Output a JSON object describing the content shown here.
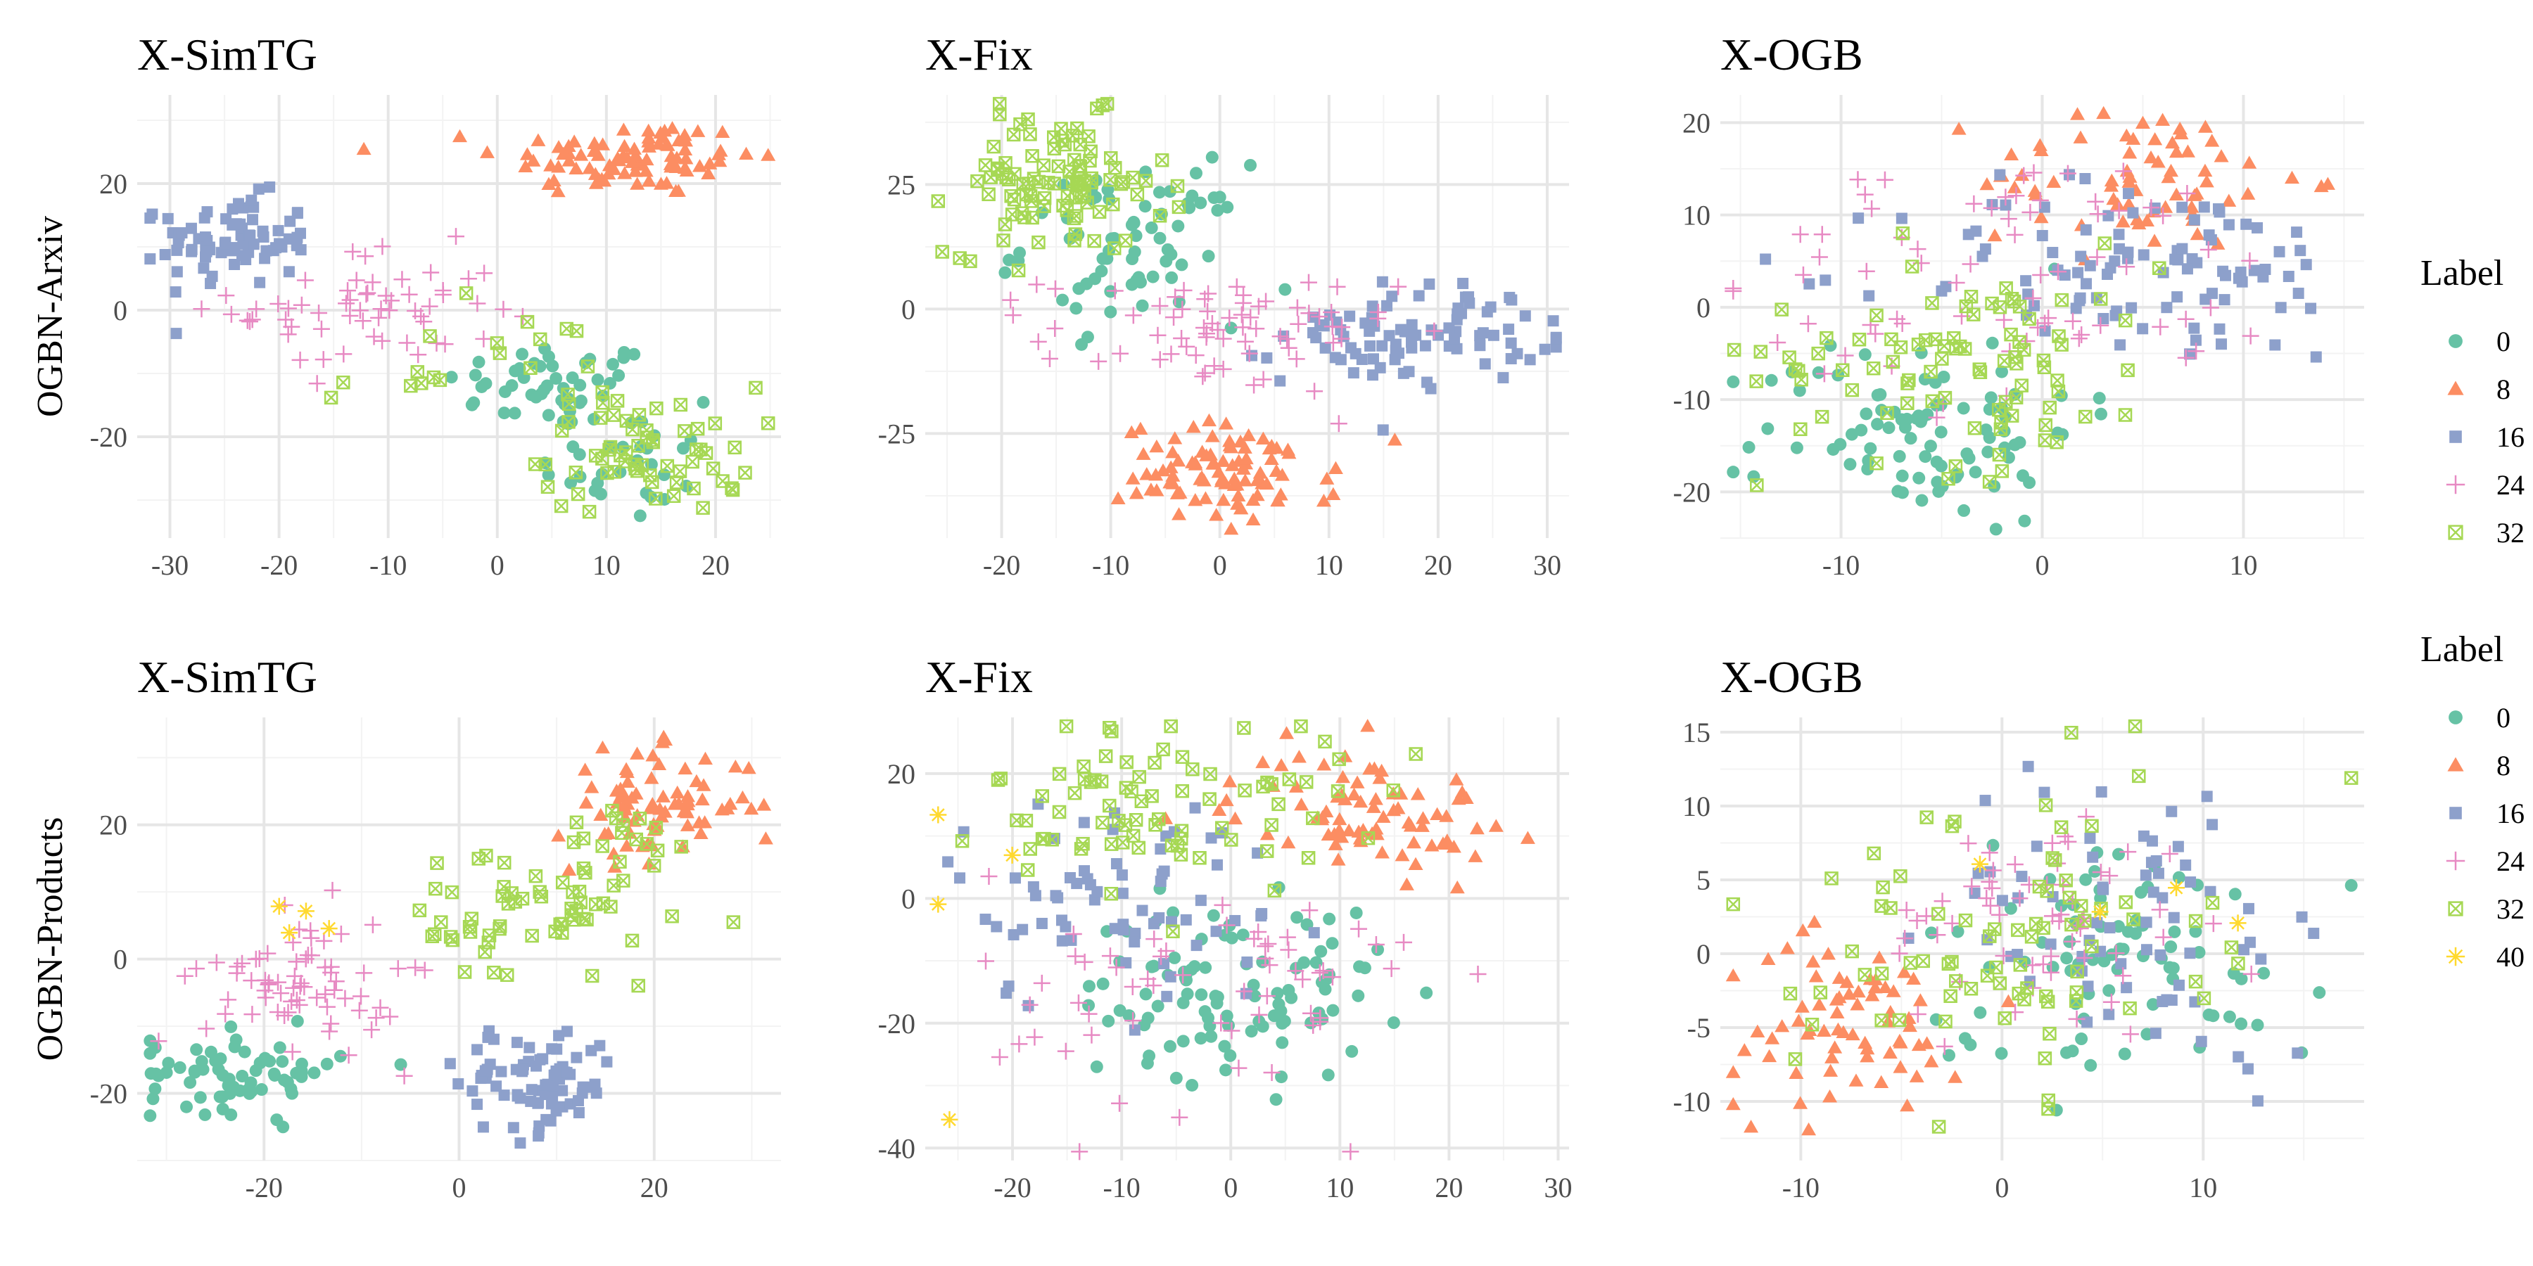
{
  "chart_data": [
    {
      "type": "scatter",
      "title": "X-SimTG",
      "row_label": "OGBN-Arxiv",
      "xlim": [
        -33,
        26
      ],
      "ylim": [
        -36,
        34
      ],
      "xticks": [
        -30,
        -20,
        -10,
        0,
        10,
        20
      ],
      "yticks": [
        -20,
        0,
        20
      ],
      "series": [
        {
          "name": "0",
          "clusters": [
            {
              "cx": 5,
              "cy": -12,
              "sx": 5,
              "sy": 3.5,
              "n": 50
            },
            {
              "cx": 12,
              "cy": -24,
              "sx": 4,
              "sy": 5,
              "n": 30
            }
          ]
        },
        {
          "name": "8",
          "clusters": [
            {
              "cx": 12,
              "cy": 24,
              "sx": 6,
              "sy": 3,
              "n": 90
            }
          ]
        },
        {
          "name": "16",
          "clusters": [
            {
              "cx": -24,
              "cy": 11,
              "sx": 3.5,
              "sy": 3.5,
              "n": 80
            }
          ]
        },
        {
          "name": "24",
          "clusters": [
            {
              "cx": -12,
              "cy": 0,
              "sx": 6,
              "sy": 5,
              "n": 60
            }
          ]
        },
        {
          "name": "32",
          "clusters": [
            {
              "cx": 14,
              "cy": -22,
              "sx": 5,
              "sy": 5,
              "n": 60
            },
            {
              "cx": -2,
              "cy": -10,
              "sx": 7,
              "sy": 5,
              "n": 20
            }
          ]
        }
      ]
    },
    {
      "type": "scatter",
      "title": "X-Fix",
      "xlim": [
        -27,
        32
      ],
      "ylim": [
        -46,
        43
      ],
      "xticks": [
        -20,
        -10,
        0,
        10,
        20,
        30
      ],
      "yticks": [
        -25,
        0,
        25
      ],
      "series": [
        {
          "name": "0",
          "clusters": [
            {
              "cx": -8,
              "cy": 13,
              "sx": 5,
              "sy": 8,
              "n": 70
            }
          ]
        },
        {
          "name": "8",
          "clusters": [
            {
              "cx": 1,
              "cy": -33,
              "sx": 5,
              "sy": 5,
              "n": 90
            }
          ]
        },
        {
          "name": "16",
          "clusters": [
            {
              "cx": 18,
              "cy": -5,
              "sx": 6,
              "sy": 5,
              "n": 90
            }
          ]
        },
        {
          "name": "24",
          "clusters": [
            {
              "cx": 0,
              "cy": -5,
              "sx": 8,
              "sy": 6,
              "n": 70
            }
          ]
        },
        {
          "name": "32",
          "clusters": [
            {
              "cx": -15,
              "cy": 25,
              "sx": 5,
              "sy": 7,
              "n": 100
            }
          ]
        }
      ]
    },
    {
      "type": "scatter",
      "title": "X-OGB",
      "xlim": [
        -16,
        16
      ],
      "ylim": [
        -25,
        23
      ],
      "xticks": [
        -10,
        0,
        10
      ],
      "yticks": [
        -20,
        -10,
        0,
        10,
        20
      ],
      "legend": {
        "title": "Label",
        "position": "right"
      },
      "series": [
        {
          "name": "0",
          "clusters": [
            {
              "cx": -6,
              "cy": -13,
              "sx": 4,
              "sy": 5,
              "n": 90
            }
          ]
        },
        {
          "name": "8",
          "clusters": [
            {
              "cx": 5,
              "cy": 14,
              "sx": 4,
              "sy": 4,
              "n": 70
            }
          ]
        },
        {
          "name": "16",
          "clusters": [
            {
              "cx": 5,
              "cy": 4,
              "sx": 6,
              "sy": 5,
              "n": 100
            }
          ]
        },
        {
          "name": "24",
          "clusters": [
            {
              "cx": -1,
              "cy": 3,
              "sx": 7,
              "sy": 7,
              "n": 70
            }
          ]
        },
        {
          "name": "32",
          "clusters": [
            {
              "cx": -4,
              "cy": -5,
              "sx": 5,
              "sy": 6,
              "n": 90
            }
          ]
        }
      ]
    },
    {
      "type": "scatter",
      "title": "X-SimTG",
      "row_label": "OGBN-Products",
      "xlim": [
        -33,
        33
      ],
      "ylim": [
        -30,
        36
      ],
      "xticks": [
        -20,
        0,
        20
      ],
      "yticks": [
        -20,
        0,
        20
      ],
      "series": [
        {
          "name": "0",
          "clusters": [
            {
              "cx": -22,
              "cy": -17,
              "sx": 5,
              "sy": 3,
              "n": 70
            }
          ]
        },
        {
          "name": "8",
          "clusters": [
            {
              "cx": 20,
              "cy": 23,
              "sx": 5,
              "sy": 4,
              "n": 80
            }
          ]
        },
        {
          "name": "16",
          "clusters": [
            {
              "cx": 8,
              "cy": -18,
              "sx": 4,
              "sy": 4,
              "n": 80
            }
          ]
        },
        {
          "name": "24",
          "clusters": [
            {
              "cx": -16,
              "cy": -3,
              "sx": 5,
              "sy": 5,
              "n": 70
            }
          ]
        },
        {
          "name": "32",
          "clusters": [
            {
              "cx": 8,
              "cy": 6,
              "sx": 7,
              "sy": 6,
              "n": 60
            },
            {
              "cx": 17,
              "cy": 18,
              "sx": 4,
              "sy": 3,
              "n": 15
            }
          ]
        },
        {
          "name": "40",
          "clusters": [
            {
              "cx": -17,
              "cy": 7,
              "sx": 2,
              "sy": 2,
              "n": 4
            }
          ]
        }
      ]
    },
    {
      "type": "scatter",
      "title": "X-Fix",
      "xlim": [
        -28,
        31
      ],
      "ylim": [
        -42,
        29
      ],
      "xticks": [
        -20,
        -10,
        0,
        10,
        20,
        30
      ],
      "yticks": [
        -40,
        -20,
        0,
        20
      ],
      "series": [
        {
          "name": "0",
          "clusters": [
            {
              "cx": 0,
              "cy": -15,
              "sx": 7,
              "sy": 7,
              "n": 100
            }
          ]
        },
        {
          "name": "8",
          "clusters": [
            {
              "cx": 12,
              "cy": 14,
              "sx": 6,
              "sy": 5,
              "n": 80
            }
          ]
        },
        {
          "name": "16",
          "clusters": [
            {
              "cx": -10,
              "cy": 0,
              "sx": 8,
              "sy": 9,
              "n": 70
            }
          ]
        },
        {
          "name": "24",
          "clusters": [
            {
              "cx": -2,
              "cy": -15,
              "sx": 10,
              "sy": 10,
              "n": 60
            }
          ]
        },
        {
          "name": "32",
          "clusters": [
            {
              "cx": -6,
              "cy": 15,
              "sx": 8,
              "sy": 7,
              "n": 80
            }
          ]
        },
        {
          "name": "40",
          "clusters": [
            {
              "cx": -18,
              "cy": 9,
              "sx": 10,
              "sy": 18,
              "n": 4
            }
          ]
        }
      ]
    },
    {
      "type": "scatter",
      "title": "X-OGB",
      "xlim": [
        -14,
        18
      ],
      "ylim": [
        -14,
        16
      ],
      "xticks": [
        -10,
        0,
        10
      ],
      "yticks": [
        -10,
        -5,
        0,
        5,
        10,
        15
      ],
      "legend": {
        "title": "Label",
        "position": "right"
      },
      "series": [
        {
          "name": "0",
          "clusters": [
            {
              "cx": 6,
              "cy": 0,
              "sx": 5,
              "sy": 4,
              "n": 80
            }
          ]
        },
        {
          "name": "8",
          "clusters": [
            {
              "cx": -8,
              "cy": -5,
              "sx": 3,
              "sy": 3,
              "n": 70
            }
          ]
        },
        {
          "name": "16",
          "clusters": [
            {
              "cx": 7,
              "cy": 3,
              "sx": 5,
              "sy": 5,
              "n": 70
            }
          ]
        },
        {
          "name": "24",
          "clusters": [
            {
              "cx": 2,
              "cy": 2,
              "sx": 4,
              "sy": 4,
              "n": 60
            }
          ]
        },
        {
          "name": "32",
          "clusters": [
            {
              "cx": 0,
              "cy": 1,
              "sx": 5,
              "sy": 5,
              "n": 80
            }
          ]
        },
        {
          "name": "40",
          "clusters": [
            {
              "cx": 5,
              "cy": 0,
              "sx": 4,
              "sy": 4,
              "n": 4
            }
          ]
        }
      ]
    }
  ],
  "legend_items": [
    {
      "label": "0",
      "color": "#66c2a5",
      "shape": "circle"
    },
    {
      "label": "8",
      "color": "#fc8d62",
      "shape": "triangle"
    },
    {
      "label": "16",
      "color": "#8da0cb",
      "shape": "square"
    },
    {
      "label": "24",
      "color": "#e78ac3",
      "shape": "plus"
    },
    {
      "label": "32",
      "color": "#a6d854",
      "shape": "square-cross"
    },
    {
      "label": "40",
      "color": "#ffd92f",
      "shape": "asterisk"
    }
  ]
}
